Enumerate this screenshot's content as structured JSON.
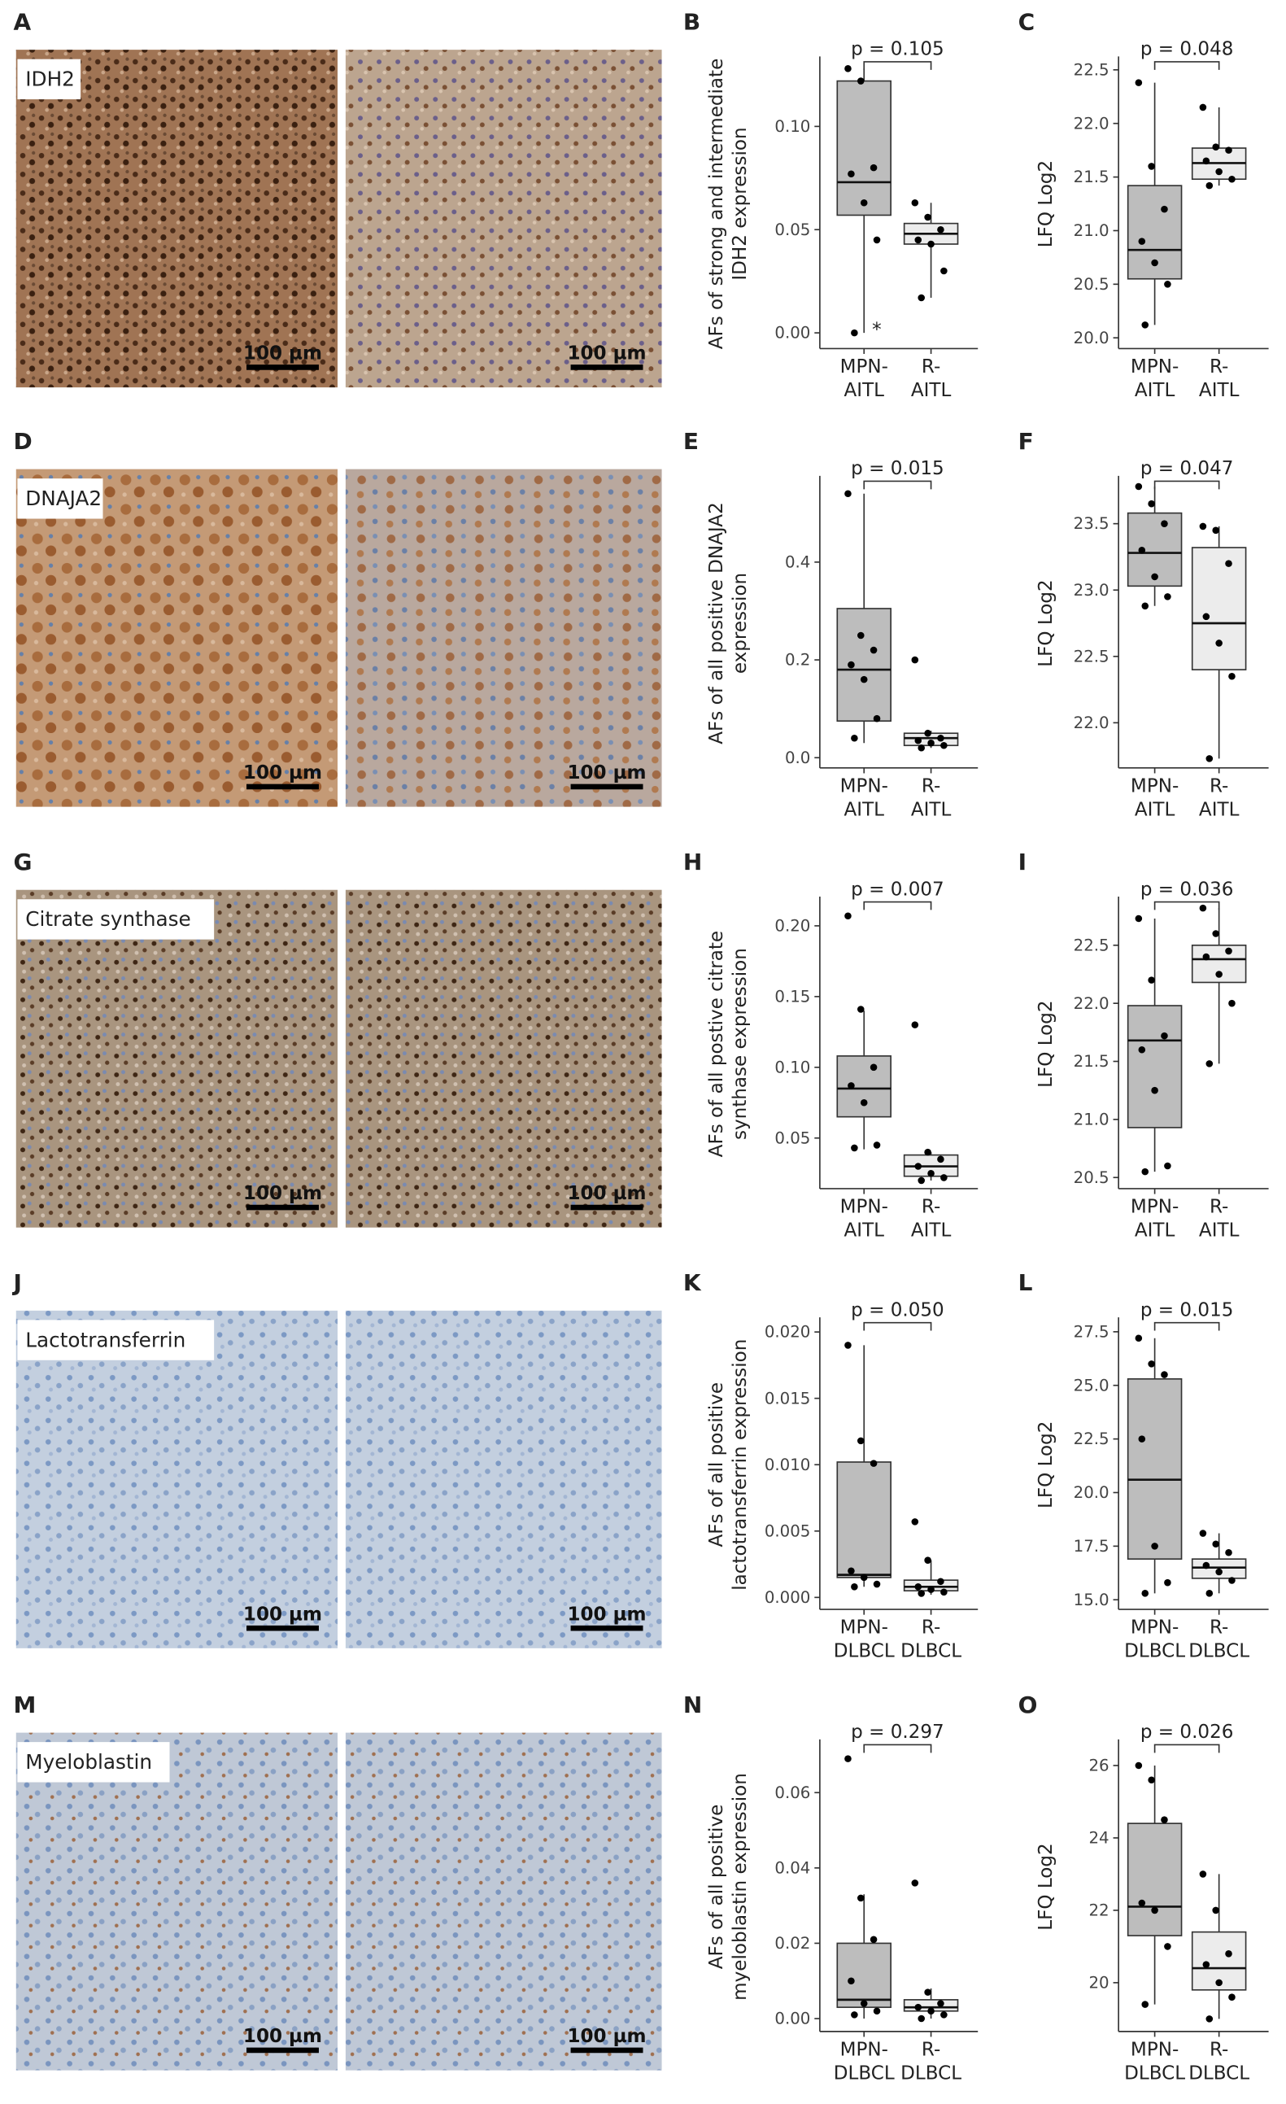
{
  "images": [
    {
      "panel": "A",
      "label": "IDH2",
      "scale_bars": [
        "100 µm",
        "100 µm"
      ]
    },
    {
      "panel": "D",
      "label": "DNAJA2",
      "scale_bars": [
        "100 µm",
        "100 µm"
      ]
    },
    {
      "panel": "G",
      "label": "Citrate synthase",
      "scale_bars": [
        "100 µm",
        "100 µm"
      ]
    },
    {
      "panel": "J",
      "label": "Lactotransferrin",
      "scale_bars": [
        "100 µm",
        "100 µm"
      ]
    },
    {
      "panel": "M",
      "label": "Myeloblastin",
      "scale_bars": [
        "100 µm",
        "100 µm"
      ]
    }
  ],
  "chart_data": [
    {
      "type": "box",
      "panel": "B",
      "annotation": "p = 0.105",
      "ylabel": "AFs of strong and intermediate\nIDH2 expression",
      "categories": [
        "MPN-\nAITL",
        "R-\nAITL"
      ],
      "ylim": [
        -0.005,
        0.13
      ],
      "yticks": [
        {
          "value": 0,
          "label": "0.00"
        },
        0.05,
        {
          "value": 0.1,
          "label": "0.10"
        }
      ],
      "series": [
        {
          "color": "#bdbdbd",
          "min": 0,
          "q1": 0.057,
          "median": 0.073,
          "q3": 0.122,
          "max": 0.128,
          "points": [
            0.128,
            0.122,
            0.08,
            0.077,
            0.063,
            0.045,
            0.0
          ],
          "note": "*"
        },
        {
          "color": "#ececec",
          "min": 0.017,
          "q1": 0.043,
          "median": 0.048,
          "q3": 0.053,
          "max": 0.063,
          "points": [
            0.063,
            0.056,
            0.05,
            0.045,
            0.043,
            0.03,
            0.017
          ]
        }
      ]
    },
    {
      "type": "box",
      "panel": "C",
      "annotation": "p = 0.048",
      "ylabel": "LFQ Log2",
      "categories": [
        "MPN-\nAITL",
        "R-\nAITL"
      ],
      "ylim": [
        19.95,
        22.55
      ],
      "yticks": [
        {
          "value": 20,
          "label": "20.0"
        },
        20.5,
        {
          "value": 21,
          "label": "21.0"
        },
        21.5,
        {
          "value": 22,
          "label": "22.0"
        },
        22.5
      ],
      "series": [
        {
          "color": "#bdbdbd",
          "min": 20.12,
          "q1": 20.55,
          "median": 20.82,
          "q3": 21.42,
          "max": 22.38,
          "points": [
            22.38,
            21.6,
            21.2,
            20.9,
            20.7,
            20.5,
            20.12
          ]
        },
        {
          "color": "#ececec",
          "min": 21.42,
          "q1": 21.48,
          "median": 21.63,
          "q3": 21.77,
          "max": 22.15,
          "points": [
            22.15,
            21.78,
            21.75,
            21.65,
            21.55,
            21.48,
            21.42
          ]
        }
      ]
    },
    {
      "type": "box",
      "panel": "E",
      "annotation": "p = 0.015",
      "ylabel": "AFs of all positive DNAJA2\nexpression",
      "categories": [
        "MPN-\nAITL",
        "R-\nAITL"
      ],
      "ylim": [
        -0.01,
        0.56
      ],
      "yticks": [
        {
          "value": 0,
          "label": "0.0"
        },
        0.2,
        0.4
      ],
      "series": [
        {
          "color": "#bdbdbd",
          "min": 0.03,
          "q1": 0.075,
          "median": 0.18,
          "q3": 0.305,
          "max": 0.54,
          "points": [
            0.54,
            0.25,
            0.22,
            0.19,
            0.16,
            0.08,
            0.04
          ]
        },
        {
          "color": "#ececec",
          "min": 0.02,
          "q1": 0.025,
          "median": 0.04,
          "q3": 0.05,
          "max": 0.055,
          "points": [
            0.2,
            0.05,
            0.04,
            0.035,
            0.03,
            0.025,
            0.02
          ]
        }
      ]
    },
    {
      "type": "box",
      "panel": "F",
      "annotation": "p = 0.047",
      "ylabel": "LFQ Log2",
      "categories": [
        "MPN-\nAITL",
        "R-\nAITL"
      ],
      "ylim": [
        21.7,
        23.8
      ],
      "yticks": [
        {
          "value": 22,
          "label": "22.0"
        },
        22.5,
        {
          "value": 23,
          "label": "23.0"
        },
        23.5
      ],
      "series": [
        {
          "color": "#bdbdbd",
          "min": 22.88,
          "q1": 23.03,
          "median": 23.28,
          "q3": 23.58,
          "max": 23.78,
          "points": [
            23.78,
            23.65,
            23.5,
            23.3,
            23.1,
            22.95,
            22.88
          ]
        },
        {
          "color": "#ececec",
          "min": 21.73,
          "q1": 22.4,
          "median": 22.75,
          "q3": 23.32,
          "max": 23.48,
          "points": [
            23.48,
            23.45,
            23.2,
            22.8,
            22.6,
            22.35,
            21.73
          ]
        }
      ]
    },
    {
      "type": "box",
      "panel": "H",
      "annotation": "p = 0.007",
      "ylabel": "AFs of all postive citrate\nsynthase expression",
      "categories": [
        "MPN-\nAITL",
        "R-\nAITL"
      ],
      "ylim": [
        0.018,
        0.215
      ],
      "yticks": [
        0.05,
        {
          "value": 0.1,
          "label": "0.10"
        },
        0.15,
        {
          "value": 0.2,
          "label": "0.20"
        }
      ],
      "series": [
        {
          "color": "#bdbdbd",
          "min": 0.042,
          "q1": 0.065,
          "median": 0.085,
          "q3": 0.108,
          "max": 0.14,
          "points": [
            0.207,
            0.141,
            0.1,
            0.087,
            0.075,
            0.045,
            0.043
          ]
        },
        {
          "color": "#ececec",
          "min": 0.02,
          "q1": 0.023,
          "median": 0.03,
          "q3": 0.038,
          "max": 0.04,
          "points": [
            0.13,
            0.04,
            0.035,
            0.03,
            0.025,
            0.022,
            0.02
          ]
        }
      ]
    },
    {
      "type": "box",
      "panel": "I",
      "annotation": "p = 0.036",
      "ylabel": "LFQ Log2",
      "categories": [
        "MPN-\nAITL",
        "R-\nAITL"
      ],
      "ylim": [
        20.45,
        22.85
      ],
      "yticks": [
        20.5,
        {
          "value": 21,
          "label": "21.0"
        },
        21.5,
        {
          "value": 22,
          "label": "22.0"
        },
        22.5
      ],
      "series": [
        {
          "color": "#bdbdbd",
          "min": 20.55,
          "q1": 20.93,
          "median": 21.68,
          "q3": 21.98,
          "max": 22.73,
          "points": [
            22.73,
            22.2,
            21.72,
            21.6,
            21.25,
            20.6,
            20.55
          ]
        },
        {
          "color": "#ececec",
          "min": 21.48,
          "q1": 22.18,
          "median": 22.38,
          "q3": 22.5,
          "max": 22.82,
          "points": [
            22.82,
            22.6,
            22.45,
            22.4,
            22.25,
            22.0,
            21.48
          ]
        }
      ]
    },
    {
      "type": "box",
      "panel": "K",
      "annotation": "p = 0.050",
      "ylabel": "AFs of all positive\nlactotransferrin expression",
      "categories": [
        "MPN-\nDLBCL",
        "R-\nDLBCL"
      ],
      "ylim": [
        -0.0005,
        0.0205
      ],
      "yticks": [
        {
          "value": 0,
          "label": "0.000"
        },
        0.005,
        {
          "value": 0.01,
          "label": "0.010"
        },
        0.015,
        {
          "value": 0.02,
          "label": "0.020"
        }
      ],
      "series": [
        {
          "color": "#bdbdbd",
          "min": 0.0008,
          "q1": 0.0015,
          "median": 0.0017,
          "q3": 0.0102,
          "max": 0.019,
          "points": [
            0.019,
            0.0118,
            0.0101,
            0.002,
            0.0015,
            0.001,
            0.0008
          ]
        },
        {
          "color": "#ececec",
          "min": 0.0002,
          "q1": 0.0005,
          "median": 0.0008,
          "q3": 0.0013,
          "max": 0.0028,
          "points": [
            0.0057,
            0.0028,
            0.0012,
            0.0008,
            0.0006,
            0.0004,
            0.0003
          ]
        }
      ]
    },
    {
      "type": "box",
      "panel": "L",
      "annotation": "p = 0.015",
      "ylabel": "LFQ Log2",
      "categories": [
        "MPN-\nDLBCL",
        "R-\nDLBCL"
      ],
      "ylim": [
        14.8,
        27.8
      ],
      "yticks": [
        {
          "value": 15,
          "label": "15.0"
        },
        17.5,
        {
          "value": 20,
          "label": "20.0"
        },
        22.5,
        {
          "value": 25,
          "label": "25.0"
        },
        27.5
      ],
      "series": [
        {
          "color": "#bdbdbd",
          "min": 15.3,
          "q1": 16.9,
          "median": 20.6,
          "q3": 25.3,
          "max": 27.2,
          "points": [
            27.2,
            26.0,
            25.5,
            22.5,
            17.5,
            15.8,
            15.3
          ]
        },
        {
          "color": "#ececec",
          "min": 15.3,
          "q1": 16.0,
          "median": 16.5,
          "q3": 16.9,
          "max": 18.1,
          "points": [
            18.1,
            17.6,
            17.2,
            16.6,
            16.3,
            15.9,
            15.3
          ]
        }
      ]
    },
    {
      "type": "box",
      "panel": "N",
      "annotation": "p = 0.297",
      "ylabel": "AFs of all positive\nmyeloblastin expression",
      "categories": [
        "MPN-\nDLBCL",
        "R-\nDLBCL"
      ],
      "ylim": [
        -0.002,
        0.072
      ],
      "yticks": [
        {
          "value": 0,
          "label": "0.00"
        },
        0.02,
        0.04,
        0.06
      ],
      "series": [
        {
          "color": "#bdbdbd",
          "min": 0,
          "q1": 0.003,
          "median": 0.005,
          "q3": 0.02,
          "max": 0.033,
          "points": [
            0.069,
            0.032,
            0.021,
            0.01,
            0.004,
            0.002,
            0.001
          ]
        },
        {
          "color": "#ececec",
          "min": 0,
          "q1": 0.002,
          "median": 0.003,
          "q3": 0.005,
          "max": 0.008,
          "points": [
            0.036,
            0.007,
            0.004,
            0.003,
            0.002,
            0.001,
            0.0
          ]
        }
      ]
    },
    {
      "type": "box",
      "panel": "O",
      "annotation": "p = 0.026",
      "ylabel": "LFQ Log2",
      "categories": [
        "MPN-\nDLBCL",
        "R-\nDLBCL"
      ],
      "ylim": [
        18.8,
        26.5
      ],
      "yticks": [
        20,
        22,
        24,
        26
      ],
      "series": [
        {
          "color": "#bdbdbd",
          "min": 19.4,
          "q1": 21.3,
          "median": 22.1,
          "q3": 24.4,
          "max": 26.0,
          "points": [
            26.0,
            25.6,
            24.5,
            22.2,
            22.0,
            21.0,
            19.4
          ]
        },
        {
          "color": "#ececec",
          "min": 19.0,
          "q1": 19.8,
          "median": 20.4,
          "q3": 21.4,
          "max": 23.0,
          "points": [
            23.0,
            22.0,
            20.8,
            20.5,
            20.0,
            19.6,
            19.0
          ]
        }
      ]
    }
  ]
}
